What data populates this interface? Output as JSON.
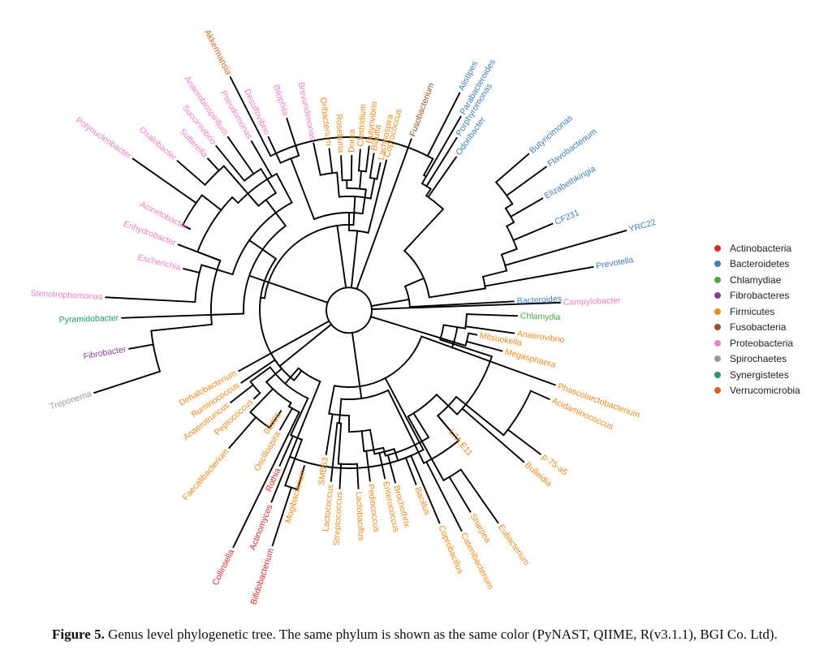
{
  "phyla": [
    {
      "name": "Actinobacteria",
      "color": "#d62b2b"
    },
    {
      "name": "Bacteroidetes",
      "color": "#3f7fb8"
    },
    {
      "name": "Chlamydiae",
      "color": "#4aa845"
    },
    {
      "name": "Fibrobacteres",
      "color": "#8a4099"
    },
    {
      "name": "Firmicutes",
      "color": "#ef8a1c"
    },
    {
      "name": "Fusobacteria",
      "color": "#9a5424"
    },
    {
      "name": "Proteobacteria",
      "color": "#ee80c3"
    },
    {
      "name": "Spirochaetes",
      "color": "#9a9a9a"
    },
    {
      "name": "Synergistetes",
      "color": "#1f9a73"
    },
    {
      "name": "Verrucomicrobia",
      "color": "#d4651f"
    }
  ],
  "taxa": [
    {
      "name": "Akkermansia",
      "phylum": "Verrucomicrobia"
    },
    {
      "name": "Alistipes",
      "phylum": "Bacteroidetes"
    },
    {
      "name": "Parabacteroides",
      "phylum": "Bacteroidetes"
    },
    {
      "name": "Porphyromonas",
      "phylum": "Bacteroidetes"
    },
    {
      "name": "Odoribacter",
      "phylum": "Bacteroidetes"
    },
    {
      "name": "Butyricimonas",
      "phylum": "Bacteroidetes"
    },
    {
      "name": "Flavobacterium",
      "phylum": "Bacteroidetes"
    },
    {
      "name": "Elizabethkingia",
      "phylum": "Bacteroidetes"
    },
    {
      "name": "CF231",
      "phylum": "Bacteroidetes"
    },
    {
      "name": "YRC22",
      "phylum": "Bacteroidetes"
    },
    {
      "name": "Prevotella",
      "phylum": "Bacteroidetes"
    },
    {
      "name": "Bacteroides",
      "phylum": "Bacteroidetes"
    },
    {
      "name": "Campylobacter",
      "phylum": "Proteobacteria"
    },
    {
      "name": "Chlamydia",
      "phylum": "Chlamydiae"
    },
    {
      "name": "Anaerovibrio",
      "phylum": "Firmicutes"
    },
    {
      "name": "Mitsuokella",
      "phylum": "Firmicutes"
    },
    {
      "name": "Megasphaera",
      "phylum": "Firmicutes"
    },
    {
      "name": "Phascolarctobacterium",
      "phylum": "Firmicutes"
    },
    {
      "name": "Acidaminococcus",
      "phylum": "Firmicutes"
    },
    {
      "name": "p-75-a5",
      "phylum": "Firmicutes"
    },
    {
      "name": "Bulleidia",
      "phylum": "Firmicutes"
    },
    {
      "name": "L7A E11",
      "phylum": "Firmicutes"
    },
    {
      "name": "Eubacterium",
      "phylum": "Firmicutes"
    },
    {
      "name": "Sharpea",
      "phylum": "Firmicutes"
    },
    {
      "name": "Catenibacterium",
      "phylum": "Firmicutes"
    },
    {
      "name": "Coprobacillus",
      "phylum": "Firmicutes"
    },
    {
      "name": "Bacillus",
      "phylum": "Firmicutes"
    },
    {
      "name": "Brochothrix",
      "phylum": "Firmicutes"
    },
    {
      "name": "Enterococcus",
      "phylum": "Firmicutes"
    },
    {
      "name": "Pediococcus",
      "phylum": "Firmicutes"
    },
    {
      "name": "Lactobacillus",
      "phylum": "Firmicutes"
    },
    {
      "name": "Streptococcus",
      "phylum": "Firmicutes"
    },
    {
      "name": "Lactococcus",
      "phylum": "Firmicutes"
    },
    {
      "name": "SMB53",
      "phylum": "Firmicutes"
    },
    {
      "name": "Mogibacterium",
      "phylum": "Firmicutes"
    },
    {
      "name": "Bifidobacterium",
      "phylum": "Actinobacteria"
    },
    {
      "name": "Actinomyces",
      "phylum": "Actinobacteria"
    },
    {
      "name": "Rothia",
      "phylum": "Actinobacteria"
    },
    {
      "name": "Collinsella",
      "phylum": "Actinobacteria"
    },
    {
      "name": "Oscillospira",
      "phylum": "Firmicutes"
    },
    {
      "name": "02d06",
      "phylum": "Firmicutes"
    },
    {
      "name": "Faecalibacterium",
      "phylum": "Firmicutes"
    },
    {
      "name": "Peptococcus",
      "phylum": "Firmicutes"
    },
    {
      "name": "Anaerotruncus",
      "phylum": "Firmicutes"
    },
    {
      "name": "Ruminococcus",
      "phylum": "Firmicutes"
    },
    {
      "name": "Dehalobacterium",
      "phylum": "Firmicutes"
    },
    {
      "name": "Treponema",
      "phylum": "Spirochaetes"
    },
    {
      "name": "Fibrobacter",
      "phylum": "Fibrobacteres"
    },
    {
      "name": "Pyramidobacter",
      "phylum": "Synergistetes"
    },
    {
      "name": "Stenotrophomonas",
      "phylum": "Proteobacteria"
    },
    {
      "name": "Escherichia",
      "phylum": "Proteobacteria"
    },
    {
      "name": "Enhydrobacter",
      "phylum": "Proteobacteria"
    },
    {
      "name": "Acinetobacter",
      "phylum": "Proteobacteria"
    },
    {
      "name": "Polynucleobacter",
      "phylum": "Proteobacteria"
    },
    {
      "name": "Oxalobacter",
      "phylum": "Proteobacteria"
    },
    {
      "name": "Sutterella",
      "phylum": "Proteobacteria"
    },
    {
      "name": "Succinivibrio",
      "phylum": "Proteobacteria"
    },
    {
      "name": "Anaerobiospirillum",
      "phylum": "Proteobacteria"
    },
    {
      "name": "Pseudomonas",
      "phylum": "Proteobacteria"
    },
    {
      "name": "Desulfovibrio",
      "phylum": "Proteobacteria"
    },
    {
      "name": "Bilophila",
      "phylum": "Proteobacteria"
    },
    {
      "name": "Brevundimonas",
      "phylum": "Proteobacteria"
    },
    {
      "name": "Oribacterium",
      "phylum": "Firmicutes"
    },
    {
      "name": "Roseburia",
      "phylum": "Firmicutes"
    },
    {
      "name": "Dorea",
      "phylum": "Firmicutes"
    },
    {
      "name": "Clostridium",
      "phylum": "Firmicutes"
    },
    {
      "name": "Butyrivibrio",
      "phylum": "Firmicutes"
    },
    {
      "name": "Blautia",
      "phylum": "Firmicutes"
    },
    {
      "name": "Lachnospira",
      "phylum": "Firmicutes"
    },
    {
      "name": "Coprococcus",
      "phylum": "Firmicutes"
    },
    {
      "name": "Fusobacterium",
      "phylum": "Fusobacteria"
    }
  ],
  "caption": {
    "label": "Figure 5.",
    "text": "Genus level phylogenetic tree. The same phylum is shown as the same color (PyNAST, QIIME, R(v3.1.1), BGI Co. Ltd)."
  }
}
